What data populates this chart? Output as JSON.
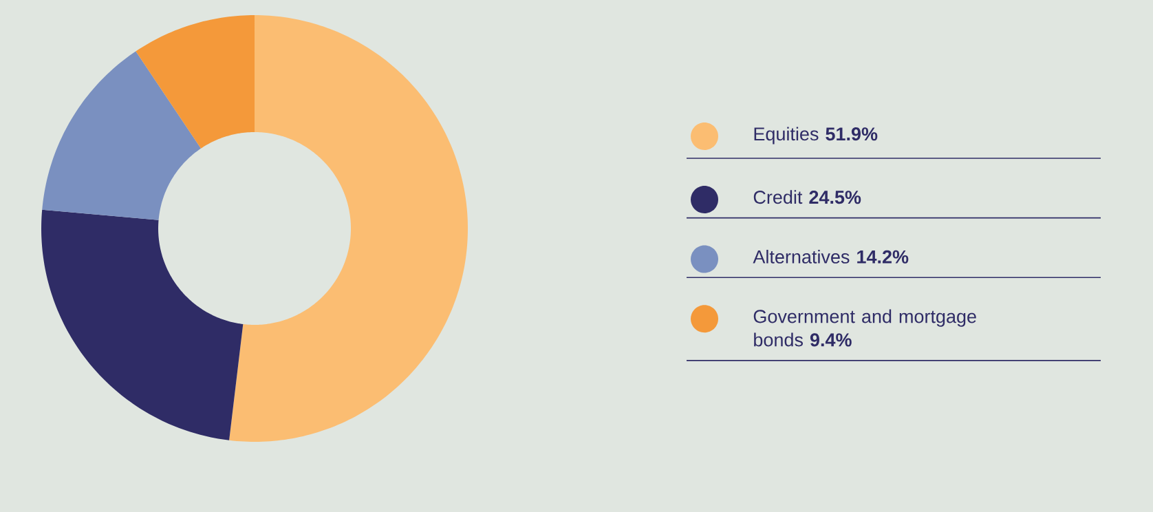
{
  "chart_data": {
    "type": "donut",
    "categories": [
      "Equities",
      "Credit",
      "Alternatives",
      "Government and mortgage bonds"
    ],
    "values": [
      51.9,
      24.5,
      14.2,
      9.4
    ],
    "value_labels": [
      "51.9%",
      "24.5%",
      "14.2%",
      "9.4%"
    ],
    "colors": [
      "#fbbd72",
      "#2f2c66",
      "#7a90c0",
      "#f4993a"
    ],
    "legend": "right"
  }
}
